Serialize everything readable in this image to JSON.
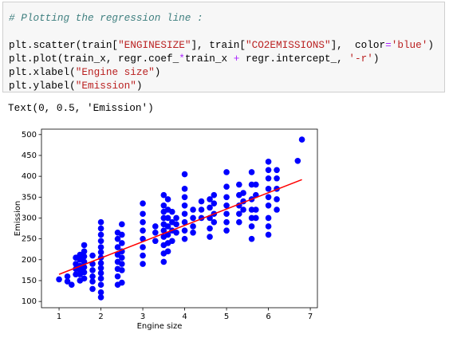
{
  "code": {
    "lines": [
      [
        "# Plotting the regression line :"
      ],
      [
        "plt.scatter(train[",
        "\"ENGINESIZE\"",
        "], train[",
        "\"CO2EMISSIONS\"",
        "],  color",
        "=",
        "'blue'",
        ")"
      ],
      [
        "plt.plot(train_x, regr.coef_",
        "*",
        "train_x ",
        "+",
        " regr.intercept_, ",
        "'-r'",
        ")"
      ],
      [
        "plt.xlabel(",
        "\"Engine size\"",
        ")"
      ],
      [
        "plt.ylabel(",
        "\"Emission\"",
        ")"
      ]
    ]
  },
  "output": "Text(0, 0.5, 'Emission')",
  "chart_data": {
    "type": "scatter",
    "xlabel": "Engine size",
    "ylabel": "Emission",
    "xlim": [
      0.58,
      7.17
    ],
    "ylim": [
      85,
      513
    ],
    "xticks": [
      1,
      2,
      3,
      4,
      5,
      6,
      7
    ],
    "yticks": [
      100,
      150,
      200,
      250,
      300,
      350,
      400,
      450,
      500
    ],
    "series": [
      {
        "type": "scatter",
        "color": "#0000ff",
        "x": [
          1.0,
          1.2,
          1.2,
          1.3,
          1.4,
          1.4,
          1.4,
          1.4,
          1.5,
          1.5,
          1.5,
          1.5,
          1.5,
          1.5,
          1.6,
          1.6,
          1.6,
          1.6,
          1.6,
          1.6,
          1.6,
          1.8,
          1.8,
          1.8,
          1.8,
          1.8,
          1.8,
          2.0,
          2.0,
          2.0,
          2.0,
          2.0,
          2.0,
          2.0,
          2.0,
          2.0,
          2.0,
          2.0,
          2.0,
          2.0,
          2.0,
          2.4,
          2.4,
          2.4,
          2.4,
          2.4,
          2.4,
          2.4,
          2.4,
          2.5,
          2.5,
          2.5,
          2.5,
          2.5,
          2.5,
          2.5,
          2.5,
          3.0,
          3.0,
          3.0,
          3.0,
          3.0,
          3.0,
          3.0,
          3.0,
          3.3,
          3.3,
          3.3,
          3.5,
          3.5,
          3.5,
          3.5,
          3.5,
          3.5,
          3.5,
          3.5,
          3.5,
          3.5,
          3.6,
          3.6,
          3.6,
          3.6,
          3.6,
          3.6,
          3.6,
          3.7,
          3.7,
          3.7,
          3.7,
          3.8,
          3.8,
          3.8,
          4.0,
          4.0,
          4.0,
          4.0,
          4.0,
          4.0,
          4.0,
          4.0,
          4.2,
          4.2,
          4.2,
          4.2,
          4.4,
          4.4,
          4.4,
          4.6,
          4.6,
          4.6,
          4.6,
          4.6,
          4.7,
          4.7,
          4.7,
          4.7,
          5.0,
          5.0,
          5.0,
          5.0,
          5.0,
          5.0,
          5.0,
          5.3,
          5.3,
          5.3,
          5.3,
          5.3,
          5.4,
          5.4,
          5.4,
          5.6,
          5.6,
          5.6,
          5.6,
          5.6,
          5.6,
          5.6,
          5.7,
          5.7,
          5.7,
          5.7,
          6.0,
          6.0,
          6.0,
          6.0,
          6.0,
          6.0,
          6.0,
          6.0,
          6.0,
          6.2,
          6.2,
          6.2,
          6.2,
          6.2,
          6.7,
          6.8
        ],
        "values": [
          153,
          148,
          160,
          140,
          165,
          178,
          190,
          205,
          150,
          165,
          175,
          185,
          200,
          212,
          155,
          170,
          182,
          195,
          208,
          220,
          235,
          130,
          148,
          160,
          175,
          190,
          210,
          110,
          122,
          140,
          155,
          168,
          180,
          192,
          205,
          218,
          230,
          245,
          260,
          275,
          290,
          140,
          160,
          178,
          195,
          212,
          230,
          250,
          265,
          145,
          175,
          190,
          205,
          220,
          240,
          260,
          285,
          190,
          210,
          230,
          250,
          270,
          290,
          310,
          335,
          245,
          265,
          280,
          195,
          215,
          235,
          255,
          270,
          285,
          300,
          315,
          330,
          355,
          220,
          240,
          260,
          280,
          300,
          320,
          345,
          245,
          270,
          290,
          315,
          265,
          285,
          300,
          250,
          270,
          290,
          310,
          330,
          350,
          370,
          405,
          265,
          280,
          300,
          320,
          300,
          320,
          340,
          255,
          275,
          300,
          325,
          345,
          290,
          310,
          335,
          355,
          270,
          290,
          310,
          330,
          350,
          375,
          410,
          290,
          310,
          330,
          355,
          380,
          320,
          340,
          360,
          250,
          280,
          300,
          320,
          345,
          380,
          410,
          300,
          320,
          355,
          380,
          260,
          280,
          300,
          330,
          350,
          370,
          395,
          415,
          435,
          320,
          345,
          370,
          395,
          415,
          437,
          488
        ]
      },
      {
        "type": "line",
        "color": "#ff0000",
        "x": [
          1.0,
          6.8
        ],
        "values": [
          165,
          392
        ]
      }
    ]
  }
}
